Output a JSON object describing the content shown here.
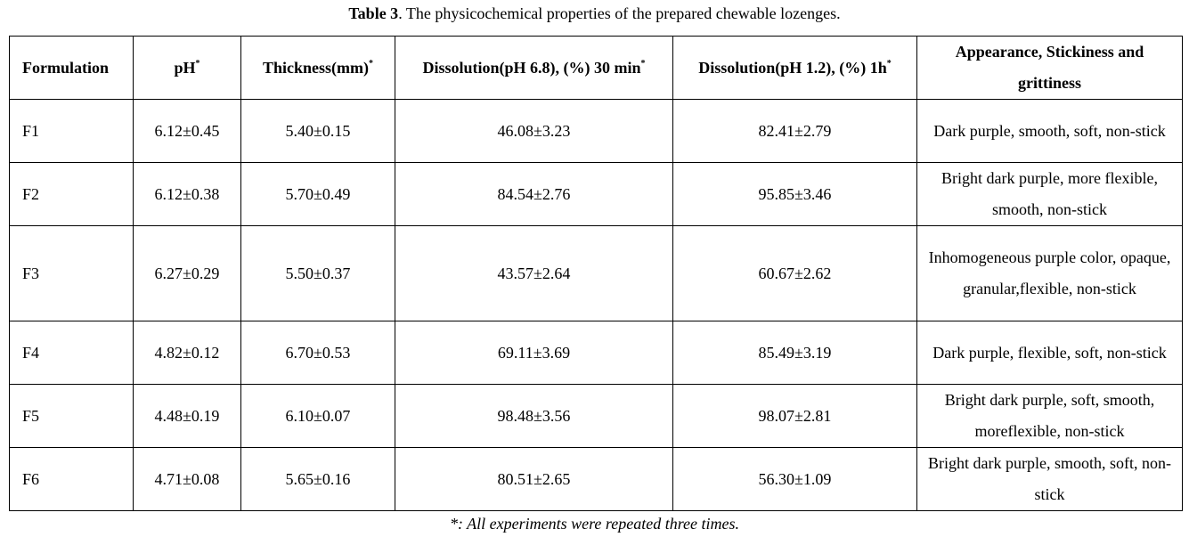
{
  "caption": {
    "label": "Table 3",
    "text": ". The physicochemical properties of the prepared chewable lozenges."
  },
  "table": {
    "columns": [
      {
        "label": "Formulation",
        "mark": ""
      },
      {
        "label": "pH",
        "mark": "*"
      },
      {
        "label": "Thickness(mm)",
        "mark": "*"
      },
      {
        "label": "Dissolution(pH 6.8), (%) 30 min",
        "mark": "*"
      },
      {
        "label": "Dissolution(pH 1.2), (%) 1h",
        "mark": "*"
      },
      {
        "label": "Appearance, Stickiness and grittiness",
        "mark": ""
      }
    ],
    "rows": [
      {
        "formulation": "F1",
        "ph": "6.12±0.45",
        "thickness": "5.40±0.15",
        "dissolution_ph68": "46.08±3.23",
        "dissolution_ph12": "82.41±2.79",
        "appearance": "Dark purple, smooth, soft, non-stick"
      },
      {
        "formulation": "F2",
        "ph": "6.12±0.38",
        "thickness": "5.70±0.49",
        "dissolution_ph68": "84.54±2.76",
        "dissolution_ph12": "95.85±3.46",
        "appearance": "Bright dark purple, more flexible, smooth, non-stick"
      },
      {
        "formulation": "F3",
        "ph": "6.27±0.29",
        "thickness": "5.50±0.37",
        "dissolution_ph68": "43.57±2.64",
        "dissolution_ph12": "60.67±2.62",
        "appearance": "Inhomogeneous purple color, opaque, granular,flexible, non-stick"
      },
      {
        "formulation": "F4",
        "ph": "4.82±0.12",
        "thickness": "6.70±0.53",
        "dissolution_ph68": "69.11±3.69",
        "dissolution_ph12": "85.49±3.19",
        "appearance": "Dark purple, flexible, soft, non-stick"
      },
      {
        "formulation": "F5",
        "ph": "4.48±0.19",
        "thickness": "6.10±0.07",
        "dissolution_ph68": "98.48±3.56",
        "dissolution_ph12": "98.07±2.81",
        "appearance": "Bright dark purple, soft, smooth, moreflexible, non-stick"
      },
      {
        "formulation": "F6",
        "ph": "4.71±0.08",
        "thickness": "5.65±0.16",
        "dissolution_ph68": "80.51±2.65",
        "dissolution_ph12": "56.30±1.09",
        "appearance": "Bright dark purple, smooth, soft, non-stick"
      }
    ]
  },
  "footnote": "*: All experiments were repeated three times."
}
